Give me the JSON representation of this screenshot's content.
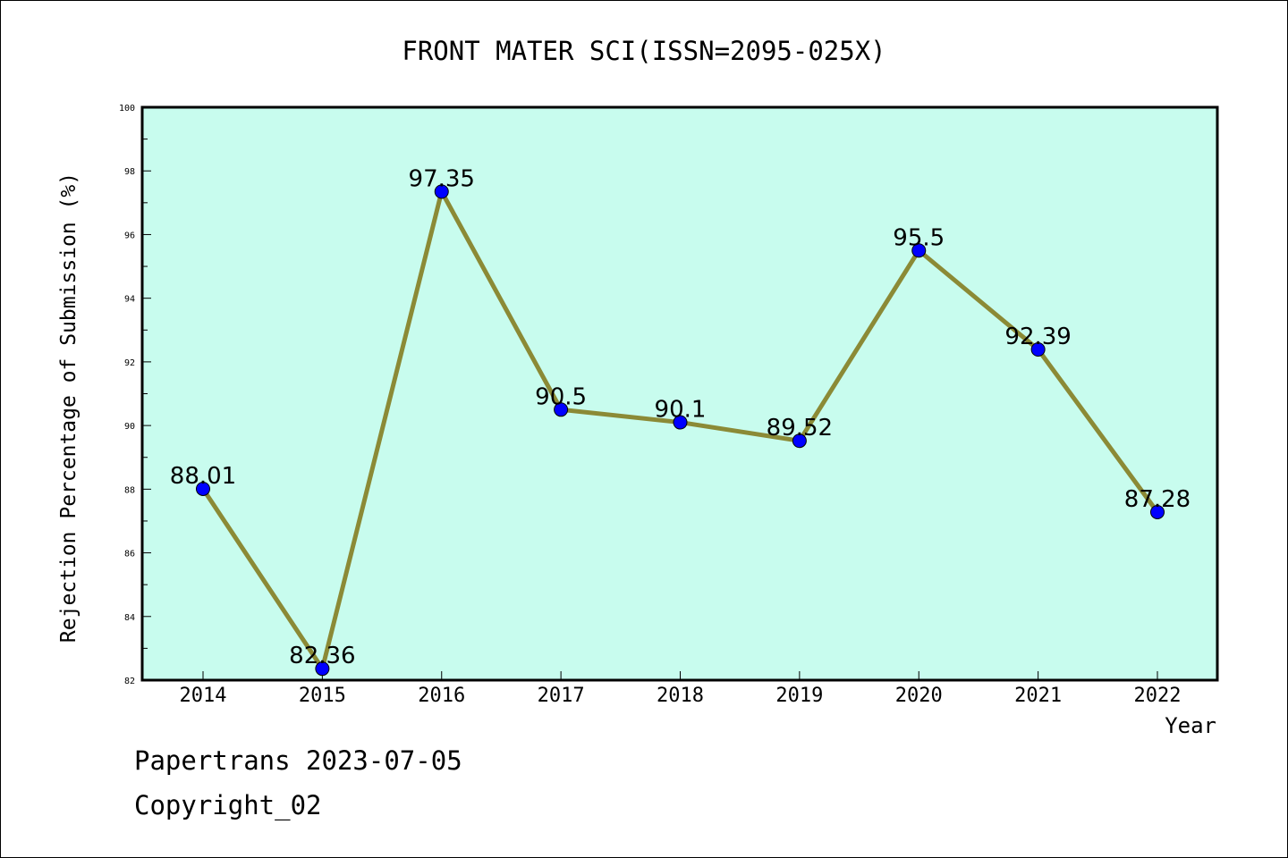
{
  "chart_data": {
    "type": "line",
    "title": "FRONT MATER SCI(ISSN=2095-025X)",
    "xlabel": "Year",
    "ylabel": "Rejection Percentage of Submission (%)",
    "categories": [
      "2014",
      "2015",
      "2016",
      "2017",
      "2018",
      "2019",
      "2020",
      "2021",
      "2022"
    ],
    "values": [
      88.01,
      82.36,
      97.35,
      90.5,
      90.1,
      89.52,
      95.5,
      92.39,
      87.28
    ],
    "data_labels": [
      "88.01",
      "82.36",
      "97.35",
      "90.5",
      "90.1",
      "89.52",
      "95.5",
      "92.39",
      "87.28"
    ],
    "ylim": [
      82,
      100
    ],
    "yticks": [
      "82",
      "84",
      "86",
      "88",
      "90",
      "92",
      "94",
      "96",
      "98",
      "100"
    ],
    "grid": false,
    "colors": {
      "plot_background": "#c8fcee",
      "line": "#8b8a36",
      "marker": "#0000ff"
    }
  },
  "footer": {
    "line1": "Papertrans 2023-07-05",
    "line2": "Copyright_02"
  }
}
